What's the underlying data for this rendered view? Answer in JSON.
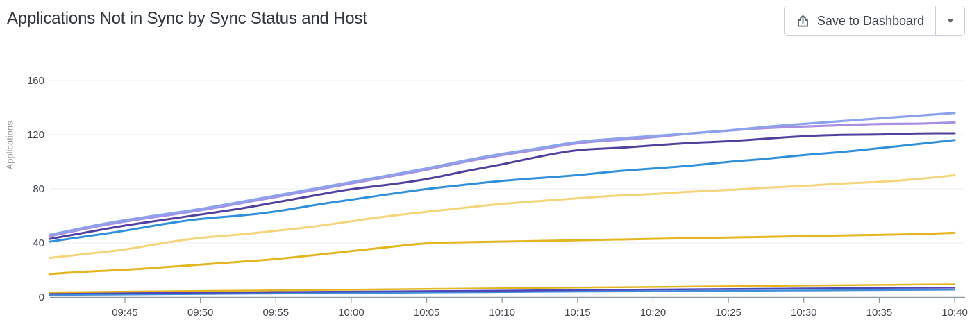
{
  "header": {
    "title": "Applications Not in Sync by Sync Status and Host",
    "save_button": {
      "label": "Save to Dashboard"
    }
  },
  "chart_data": {
    "type": "line",
    "title": "Applications Not in Sync by Sync Status and Host",
    "xlabel": "",
    "ylabel": "Applications",
    "x_range": [
      "09:40",
      "10:40"
    ],
    "x_ticks": [
      "09:45",
      "09:50",
      "09:55",
      "10:00",
      "10:05",
      "10:10",
      "10:15",
      "10:20",
      "10:25",
      "10:30",
      "10:35",
      "10:40"
    ],
    "y_ticks": [
      0,
      40,
      80,
      120,
      160
    ],
    "ylim": [
      0,
      160
    ],
    "grid": "horizontal",
    "legend_position": "none",
    "sample_interval_minutes": 2.5,
    "colors": {
      "axis_line": "#8c97a2",
      "grid_line": "#eceef1",
      "tick_label": "#3f464e",
      "axis_title": "#8f969e"
    },
    "series": [
      {
        "name": "bottom-blue",
        "color": "#418fdb",
        "width": 2.5,
        "values": [
          1.5,
          1.7,
          1.9,
          2.1,
          2.3,
          2.5,
          2.6,
          2.8,
          3,
          3.2,
          3.4,
          3.5,
          3.7,
          3.9,
          4,
          4.2,
          4.3,
          4.5,
          4.6,
          4.8,
          4.9,
          5,
          5.2,
          5.3,
          5.5
        ]
      },
      {
        "name": "bottom-indigo",
        "color": "#4f46b8",
        "width": 2.5,
        "values": [
          2.5,
          2.7,
          3,
          3.1,
          3.3,
          3.5,
          3.7,
          3.9,
          4,
          4.2,
          4.4,
          4.6,
          4.8,
          5,
          5.2,
          5.4,
          5.6,
          5.8,
          6,
          6.2,
          6.4,
          6.6,
          6.8,
          6.9,
          7
        ]
      },
      {
        "name": "bottom-gold",
        "color": "#e3b621",
        "width": 2.5,
        "values": [
          3.5,
          3.8,
          4,
          4.3,
          4.5,
          4.8,
          5,
          5.3,
          5.5,
          5.8,
          6,
          6.3,
          6.5,
          6.8,
          7,
          7.3,
          7.5,
          7.8,
          8,
          8.3,
          8.5,
          8.8,
          9,
          9.3,
          9.5
        ]
      },
      {
        "name": "gold",
        "color": "#e3b621",
        "width": 3,
        "values": [
          17,
          19,
          20,
          22,
          24,
          26,
          28,
          31,
          34,
          37,
          40,
          40.5,
          41,
          41.5,
          42,
          42.5,
          43,
          43.5,
          44,
          44.5,
          45,
          45.5,
          46,
          46.5,
          47.5
        ]
      },
      {
        "name": "pale-yellow",
        "color": "#f4d579",
        "width": 3,
        "values": [
          29,
          32,
          35,
          40,
          44,
          46,
          49,
          52,
          56,
          60,
          63,
          66,
          69,
          71,
          73,
          75,
          76,
          78,
          79,
          81,
          82,
          84,
          85,
          87,
          90
        ]
      },
      {
        "name": "blue",
        "color": "#2f8fd9",
        "width": 3,
        "values": [
          41,
          45,
          49,
          54,
          58,
          60,
          63,
          68,
          72,
          76,
          80,
          83,
          86,
          88,
          90,
          93,
          95,
          97,
          100,
          102,
          105,
          107,
          110,
          113,
          116
        ]
      },
      {
        "name": "indigo",
        "color": "#53409e",
        "width": 3,
        "values": [
          43,
          48,
          53,
          57,
          61,
          65,
          70,
          75,
          80,
          83,
          87,
          93,
          98,
          104,
          109,
          110,
          112,
          114,
          115,
          117,
          119,
          120,
          120,
          121,
          121
        ]
      },
      {
        "name": "lavender",
        "color": "#a88fe2",
        "width": 3.2,
        "values": [
          45,
          51,
          56,
          60,
          64,
          69,
          74,
          79,
          84,
          89,
          94,
          100,
          105,
          109,
          114,
          116,
          118,
          121,
          123,
          125,
          126,
          127,
          128,
          128,
          129
        ]
      },
      {
        "name": "periwinkle",
        "color": "#8ba3ec",
        "width": 3.2,
        "values": [
          46,
          52,
          57,
          61,
          65,
          70,
          75,
          80,
          85,
          90,
          95,
          101,
          106,
          110,
          115,
          117,
          119,
          121,
          123,
          126,
          128,
          130,
          132,
          134,
          136
        ]
      }
    ]
  }
}
